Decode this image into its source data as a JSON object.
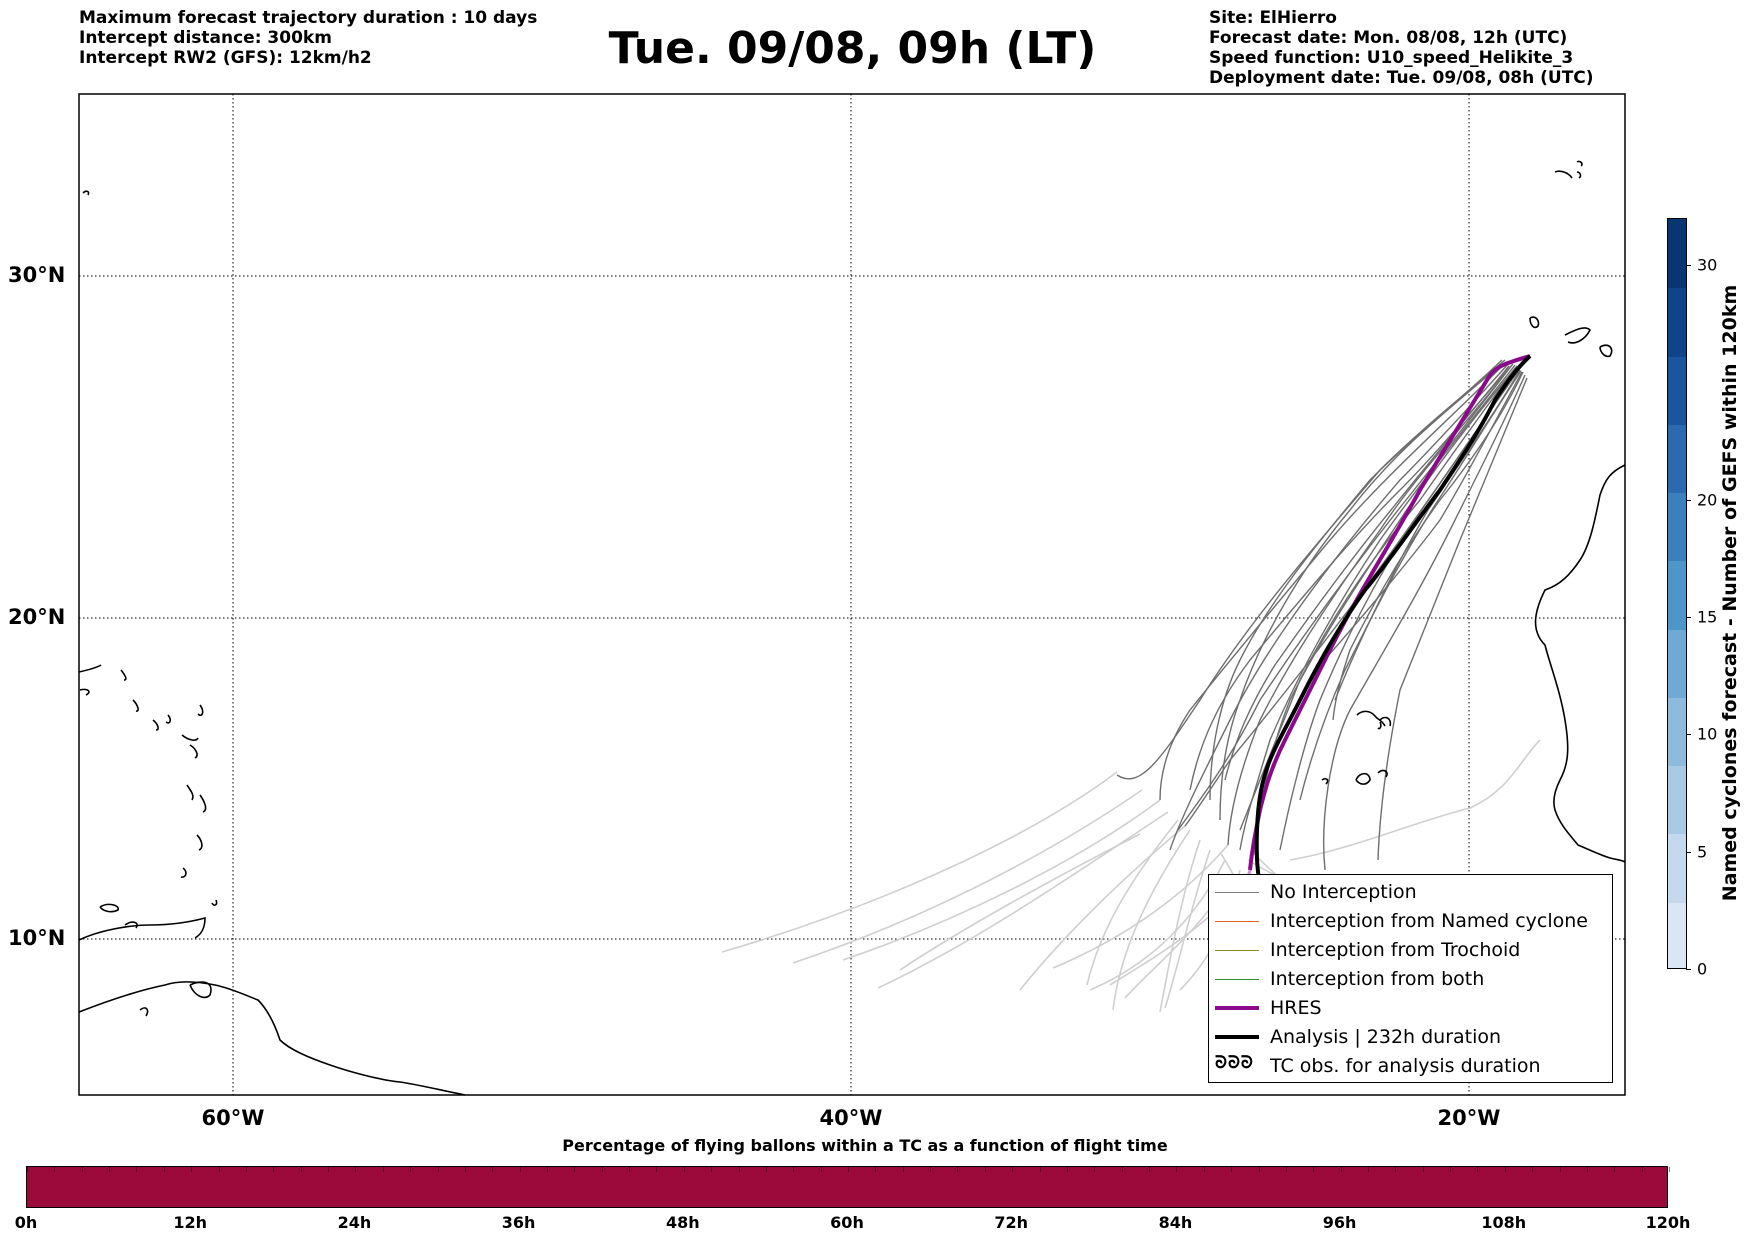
{
  "header": {
    "left_lines": [
      "Maximum forecast trajectory duration : 10 days",
      "Intercept distance: 300km",
      "Intercept RW2 (GFS):  12km/h2"
    ],
    "title": "Tue. 09/08, 09h (LT)",
    "right_lines": [
      "Site: ElHierro",
      "Forecast date: Mon. 08/08, 12h (UTC)",
      "Speed function: U10_speed_Helikite_3",
      "Deployment date: Tue. 09/08, 08h (UTC)"
    ]
  },
  "map": {
    "latitude_labels": [
      "30°N",
      "20°N",
      "10°N"
    ],
    "longitude_labels": [
      "60°W",
      "40°W",
      "20°W"
    ],
    "colors": {
      "no_interception": "#6e6e6e",
      "faded_tracks": "#cfcfcf",
      "hres": "#8b0a8b",
      "analysis": "#000000",
      "coastline": "#000000"
    }
  },
  "legend": {
    "items": [
      {
        "label": "No Interception",
        "color": "#7a7a7a",
        "style": "thin"
      },
      {
        "label": "Interception from Named cyclone",
        "color": "#e8622a",
        "style": "thin"
      },
      {
        "label": "Interception from Trochoid",
        "color": "#8a8a2a",
        "style": "thin"
      },
      {
        "label": "Interception from both",
        "color": "#2f8f2f",
        "style": "thin"
      },
      {
        "label": "HRES",
        "color": "#8b0a8b",
        "style": "thick"
      },
      {
        "label": "Analysis | 232h duration",
        "color": "#000000",
        "style": "thick"
      },
      {
        "label": "TC obs. for analysis duration",
        "color": "#000000",
        "style": "symbol",
        "icon": "cyclone-symbol-icon",
        "glyph": "ᘐᘐᘐ"
      }
    ]
  },
  "colorbar": {
    "title": "Named cyclones forecast - Number of GEFS within 120km",
    "ticks": [
      "0",
      "5",
      "10",
      "15",
      "20",
      "30"
    ],
    "range": [
      0,
      32
    ],
    "tick_values": [
      0,
      5,
      10,
      15,
      20,
      30
    ],
    "colors": [
      "#dbe6f5",
      "#c5d9ee",
      "#a9c9e5",
      "#8dbbdd",
      "#6faad6",
      "#4e95c8",
      "#3b80bb",
      "#2a6aad",
      "#1a569e",
      "#0e4488",
      "#083672"
    ]
  },
  "bottom": {
    "title": "Percentage of flying ballons within a TC as a function of flight time",
    "bar_color": "#9b0a3a",
    "bar_value_percent": 0,
    "tick_labels": [
      "0h",
      "12h",
      "24h",
      "36h",
      "48h",
      "60h",
      "72h",
      "84h",
      "96h",
      "108h",
      "120h"
    ]
  }
}
